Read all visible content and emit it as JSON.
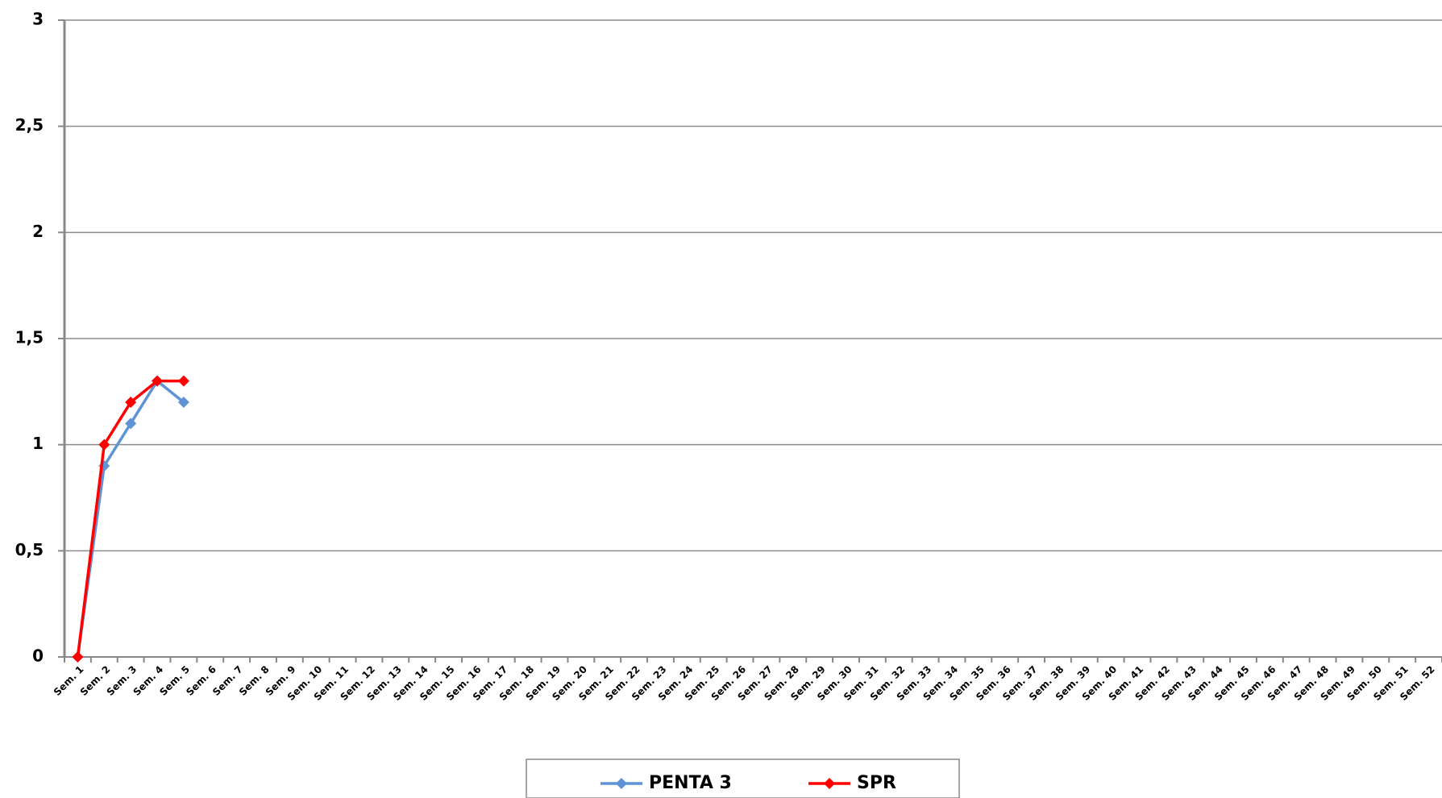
{
  "chart_data": {
    "type": "line",
    "categories": [
      "Sem. 1",
      "Sem. 2",
      "Sem. 3",
      "Sem. 4",
      "Sem. 5",
      "Sem. 6",
      "Sem. 7",
      "Sem. 8",
      "Sem. 9",
      "Sem. 10",
      "Sem. 11",
      "Sem. 12",
      "Sem. 13",
      "Sem. 14",
      "Sem. 15",
      "Sem. 16",
      "Sem. 17",
      "Sem. 18",
      "Sem. 19",
      "Sem. 20",
      "Sem. 21",
      "Sem. 22",
      "Sem. 23",
      "Sem. 24",
      "Sem. 25",
      "Sem. 26",
      "Sem. 27",
      "Sem. 28",
      "Sem. 29",
      "Sem. 30",
      "Sem. 31",
      "Sem. 32",
      "Sem. 33",
      "Sem. 34",
      "Sem. 35",
      "Sem. 36",
      "Sem. 37",
      "Sem. 38",
      "Sem. 39",
      "Sem. 40",
      "Sem. 41",
      "Sem. 42",
      "Sem. 43",
      "Sem. 44",
      "Sem. 45",
      "Sem. 46",
      "Sem. 47",
      "Sem. 48",
      "Sem. 49",
      "Sem. 50",
      "Sem. 51",
      "Sem. 52"
    ],
    "series": [
      {
        "name": "PENTA 3",
        "color": "#5f93d6",
        "values": [
          0,
          0.9,
          1.1,
          1.3,
          1.2,
          null,
          null,
          null,
          null,
          null,
          null,
          null,
          null,
          null,
          null,
          null,
          null,
          null,
          null,
          null,
          null,
          null,
          null,
          null,
          null,
          null,
          null,
          null,
          null,
          null,
          null,
          null,
          null,
          null,
          null,
          null,
          null,
          null,
          null,
          null,
          null,
          null,
          null,
          null,
          null,
          null,
          null,
          null,
          null,
          null,
          null,
          null
        ]
      },
      {
        "name": "SPR",
        "color": "#ff0000",
        "values": [
          0,
          1,
          1.2,
          1.3,
          1.3,
          null,
          null,
          null,
          null,
          null,
          null,
          null,
          null,
          null,
          null,
          null,
          null,
          null,
          null,
          null,
          null,
          null,
          null,
          null,
          null,
          null,
          null,
          null,
          null,
          null,
          null,
          null,
          null,
          null,
          null,
          null,
          null,
          null,
          null,
          null,
          null,
          null,
          null,
          null,
          null,
          null,
          null,
          null,
          null,
          null,
          null,
          null
        ]
      }
    ],
    "ylim": [
      0,
      3
    ],
    "yticks": [
      0,
      {
        "value": 0.5,
        "label": "0,5"
      },
      1,
      {
        "value": 1.5,
        "label": "1,5"
      },
      2,
      {
        "value": 2.5,
        "label": "2,5"
      },
      3
    ],
    "grid": true,
    "legend": "bottom"
  }
}
